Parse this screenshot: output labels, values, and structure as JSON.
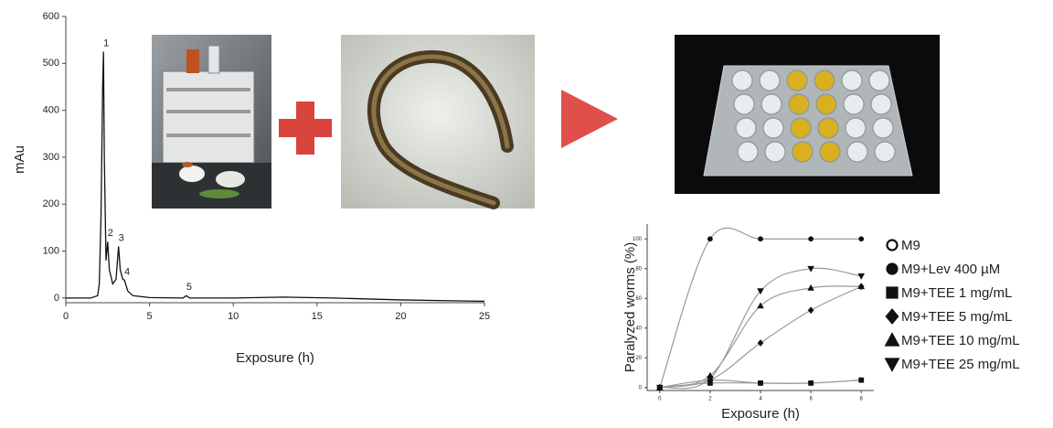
{
  "chart_data": [
    {
      "type": "line",
      "ylabel": "mAu",
      "xlabel": "Exposure (h)",
      "x": [
        0,
        1.5,
        1.9,
        2.0,
        2.1,
        2.2,
        2.25,
        2.3,
        2.4,
        2.5,
        2.6,
        2.8,
        3.0,
        3.15,
        3.25,
        3.4,
        3.5,
        3.7,
        4.0,
        5,
        7.0,
        7.2,
        7.4,
        10,
        13,
        16,
        20,
        25
      ],
      "values": [
        0,
        0,
        5,
        30,
        170,
        450,
        525,
        300,
        80,
        120,
        60,
        30,
        40,
        110,
        60,
        40,
        38,
        15,
        5,
        1,
        0,
        5,
        0,
        0,
        2,
        0,
        -4,
        -7
      ],
      "color": "#111111",
      "xlim": [
        0,
        25
      ],
      "xticks": [
        0,
        5,
        10,
        15,
        20,
        25
      ],
      "ylim": [
        -10,
        600
      ],
      "yticks": [
        0,
        100,
        200,
        300,
        400,
        500,
        600
      ],
      "annotations": [
        {
          "text": "1",
          "x": 2.25,
          "y": 525
        },
        {
          "text": "2",
          "x": 2.5,
          "y": 120
        },
        {
          "text": "3",
          "x": 3.15,
          "y": 110
        },
        {
          "text": "4",
          "x": 3.5,
          "y": 38
        },
        {
          "text": "5",
          "x": 7.2,
          "y": 5
        }
      ]
    },
    {
      "type": "line",
      "ylabel": "Paralyzed worms (%)",
      "xlabel": "Exposure (h)",
      "x": [
        0,
        2,
        4,
        6,
        8
      ],
      "xlim": [
        -0.5,
        8.5
      ],
      "xticks": [
        0,
        2,
        4,
        6,
        8
      ],
      "ylim": [
        -2,
        110
      ],
      "yticks": [
        0,
        20,
        40,
        60,
        80,
        100
      ],
      "series": [
        {
          "name": "M9",
          "marker": "circle-open",
          "color": "#111111",
          "values": [
            0,
            5,
            3,
            3,
            5
          ]
        },
        {
          "name": "M9+Lev 400 µM",
          "marker": "circle",
          "color": "#111111",
          "values": [
            0,
            100,
            100,
            100,
            100
          ]
        },
        {
          "name": "M9+TEE 1 mg/mL",
          "marker": "square",
          "color": "#111111",
          "values": [
            0,
            3,
            3,
            3,
            5
          ]
        },
        {
          "name": "M9+TEE 5 mg/mL",
          "marker": "diamond",
          "color": "#111111",
          "values": [
            0,
            5,
            30,
            52,
            68
          ]
        },
        {
          "name": "M9+TEE 10 mg/mL",
          "marker": "triangle-up",
          "color": "#111111",
          "values": [
            0,
            8,
            55,
            67,
            68
          ]
        },
        {
          "name": "M9+TEE 25 mg/mL",
          "marker": "triangle-down",
          "color": "#111111",
          "values": [
            0,
            6,
            65,
            80,
            75
          ]
        }
      ]
    }
  ]
}
